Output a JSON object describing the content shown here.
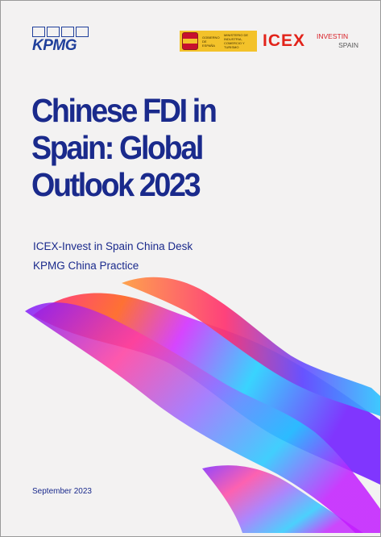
{
  "header": {
    "kpmg_logo_text": "KPMG",
    "gov_logo_line1": "GOBIERNO DE ESPAÑA",
    "gov_logo_line2": "MINISTERIO DE INDUSTRIA, COMERCIO Y TURISMO",
    "icex_logo_text": "ICEX",
    "invest_logo_line1": "INVESTIN",
    "invest_logo_line2": "SPAIN"
  },
  "cover": {
    "title_line1": "Chinese FDI in",
    "title_line2": "Spain: Global",
    "title_line3": "Outlook 2023",
    "subtitle_1": "ICEX-Invest in Spain China Desk",
    "subtitle_2": "KPMG China Practice",
    "date": "September 2023"
  },
  "colors": {
    "brand_blue": "#1a2a8c",
    "kpmg_blue": "#1f3f9b",
    "icex_red": "#e2231a",
    "gov_yellow": "#f3c22a",
    "background": "#f3f2f2"
  }
}
